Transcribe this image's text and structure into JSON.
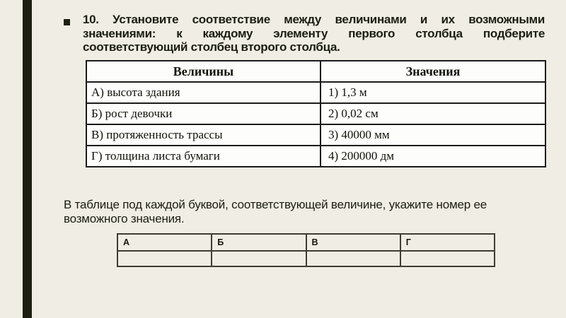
{
  "slide": {
    "colors": {
      "background": "#f0ede4",
      "accent_bar": "#1d1f10",
      "text": "#1c1d12",
      "table_cell_bg": "#fdfdfc",
      "table_border": "#1b1b1b",
      "answer_table_border": "#3e3d33"
    },
    "title": {
      "bullet_icon": "square-bullet",
      "full_text": "10. Установите соответствие между величинами и их возможными значениями: к каждому элементу первого столбца подберите соответствующий столбец второго столбца.",
      "lines": [
        "10. Установите соответствие между величинами и их возможными",
        "значениями: к каждому элементу первого столбца подберите",
        "соответствующий столбец второго столбца."
      ]
    },
    "match_table": {
      "headers": [
        "Величины",
        "Значения"
      ],
      "rows": [
        {
          "quantity": "А) высота здания",
          "value": "1) 1,3 м"
        },
        {
          "quantity": "Б) рост девочки",
          "value": "2) 0,02 см"
        },
        {
          "quantity": "В) протяженность трассы",
          "value": "3) 40000 мм"
        },
        {
          "quantity": "Г) толщина листа бумаги",
          "value": "4) 200000 дм"
        }
      ]
    },
    "instruction": {
      "lines": [
        "В таблице под каждой буквой, соответствующей величине, укажите номер ее",
        "возможного значения."
      ]
    },
    "answer_table": {
      "headers": [
        "А",
        "Б",
        "В",
        "Г"
      ],
      "values": [
        "",
        "",
        "",
        ""
      ]
    }
  }
}
